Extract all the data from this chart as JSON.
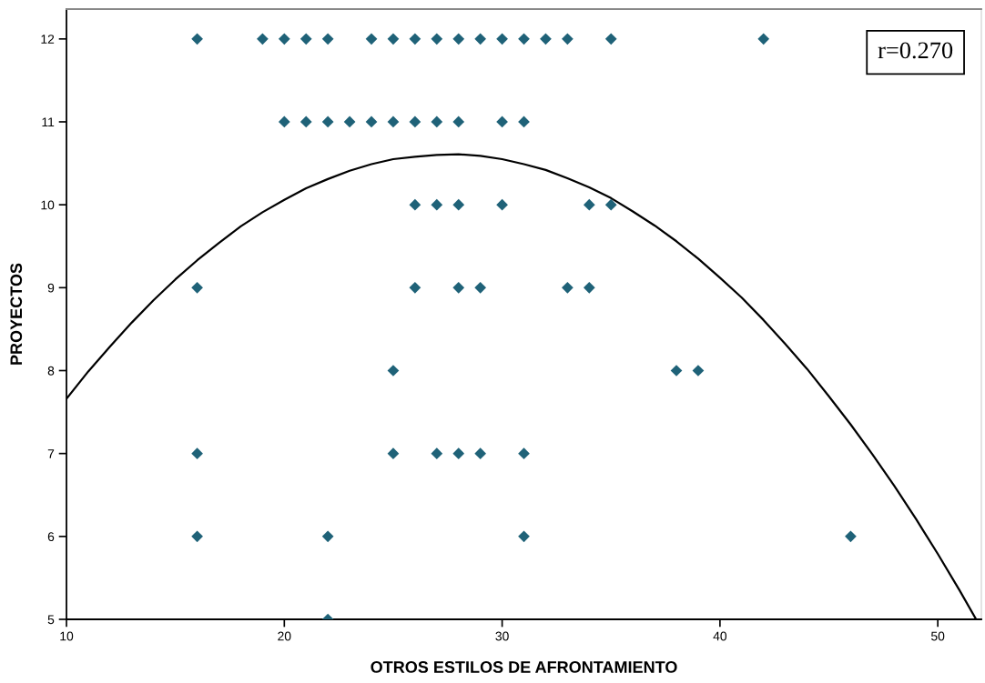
{
  "chart_data": {
    "type": "scatter",
    "xlabel": "OTROS ESTILOS DE AFRONTAMIENTO",
    "ylabel": "PROYECTOS",
    "annotations": [
      "r=0.270"
    ],
    "xlim": [
      10,
      52
    ],
    "ylim": [
      5,
      12.36
    ],
    "xticks": [
      10,
      20,
      30,
      40,
      50
    ],
    "yticks": [
      5,
      6,
      7,
      8,
      9,
      10,
      11,
      12
    ],
    "grid": false,
    "marker": "diamond",
    "series": [
      {
        "color": "#1f6278",
        "x": [
          16,
          19,
          20,
          21,
          22,
          24,
          25,
          26,
          27,
          28,
          29,
          30,
          31,
          32,
          33,
          35,
          42,
          20,
          21,
          22,
          23,
          24,
          25,
          26,
          27,
          28,
          30,
          31,
          26,
          27,
          28,
          30,
          34,
          35,
          16,
          26,
          28,
          29,
          33,
          34,
          25,
          38,
          39,
          16,
          25,
          27,
          28,
          29,
          31,
          16,
          22,
          31,
          46,
          22
        ],
        "values": [
          12,
          12,
          12,
          12,
          12,
          12,
          12,
          12,
          12,
          12,
          12,
          12,
          12,
          12,
          12,
          12,
          12,
          11,
          11,
          11,
          11,
          11,
          11,
          11,
          11,
          11,
          11,
          11,
          10,
          10,
          10,
          10,
          10,
          10,
          9,
          9,
          9,
          9,
          9,
          9,
          8,
          8,
          8,
          7,
          7,
          7,
          7,
          7,
          7,
          6,
          6,
          6,
          6,
          5
        ]
      },
      {
        "type": "line",
        "color": "#000000",
        "marker": "none",
        "line_style": "solid",
        "x": [
          10,
          11,
          12,
          13,
          14,
          15,
          16,
          17,
          18,
          19,
          20,
          21,
          22,
          23,
          24,
          25,
          26,
          27,
          28,
          29,
          30,
          31,
          32,
          33,
          34,
          35,
          36,
          37,
          38,
          39,
          40,
          41,
          42,
          43,
          44,
          45,
          46,
          47,
          48,
          49,
          50,
          51,
          51.76
        ],
        "values": [
          7.66,
          7.99,
          8.29,
          8.58,
          8.85,
          9.1,
          9.33,
          9.54,
          9.74,
          9.91,
          10.06,
          10.2,
          10.31,
          10.41,
          10.49,
          10.55,
          10.58,
          10.6,
          10.61,
          10.59,
          10.55,
          10.49,
          10.42,
          10.32,
          10.21,
          10.08,
          9.92,
          9.75,
          9.56,
          9.35,
          9.12,
          8.88,
          8.61,
          8.32,
          8.02,
          7.69,
          7.35,
          6.99,
          6.61,
          6.21,
          5.79,
          5.35,
          5.0
        ]
      }
    ]
  }
}
